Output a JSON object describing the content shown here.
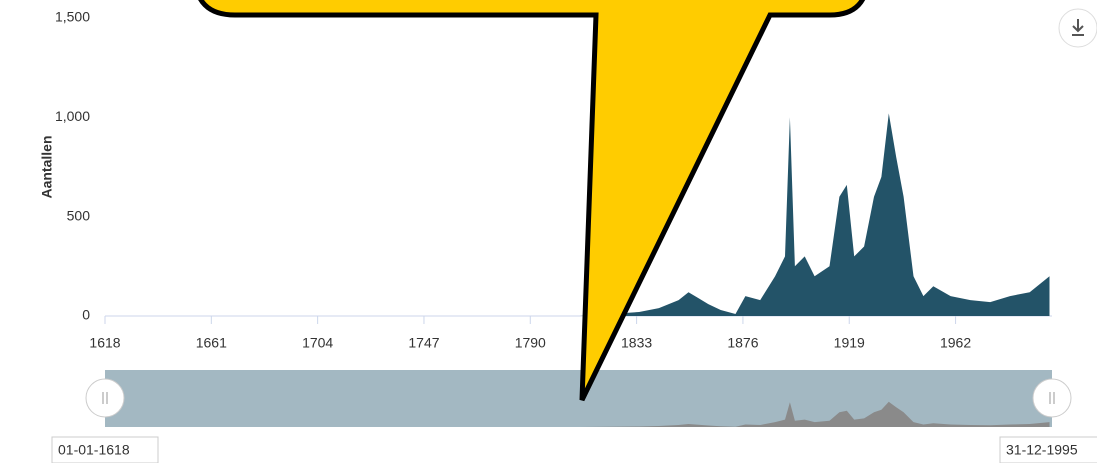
{
  "chart_data": {
    "type": "area",
    "y_axis_label": "Aantallen",
    "x": [
      1810,
      1834,
      1842,
      1850,
      1854,
      1858,
      1862,
      1867,
      1873,
      1877,
      1883,
      1889,
      1893,
      1895,
      1897,
      1901,
      1905,
      1911,
      1915,
      1918,
      1921,
      1925,
      1929,
      1932,
      1935,
      1938,
      1941,
      1945,
      1949,
      1953,
      1960,
      1968,
      1976,
      1984,
      1992,
      2000
    ],
    "values": [
      0,
      20,
      40,
      80,
      120,
      90,
      60,
      30,
      10,
      100,
      80,
      200,
      300,
      1000,
      250,
      300,
      200,
      250,
      600,
      660,
      300,
      350,
      600,
      700,
      1020,
      800,
      600,
      200,
      100,
      150,
      100,
      80,
      70,
      100,
      120,
      200
    ],
    "color": "#235368",
    "navigator_color": "#8a8a8a",
    "xlim": [
      1618,
      2001
    ],
    "xticks": [
      1618,
      1661,
      1704,
      1747,
      1790,
      1833,
      1876,
      1919,
      1962
    ],
    "ylim": [
      0,
      1500
    ],
    "yticks": [
      0,
      500,
      {
        "value": 1000,
        "label": "1,000"
      },
      {
        "value": 1500,
        "label": "1,500"
      }
    ],
    "range_labels": [
      "01-01-1618",
      "31-12-1995"
    ]
  }
}
